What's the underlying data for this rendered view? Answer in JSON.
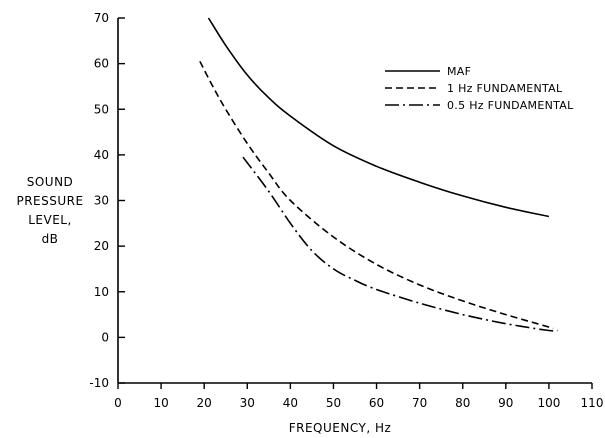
{
  "chart_data": {
    "type": "line",
    "title": "",
    "xlabel": "FREQUENCY, Hz",
    "ylabel": [
      "SOUND",
      "PRESSURE",
      "LEVEL,",
      "dB"
    ],
    "xlim": [
      0,
      110
    ],
    "ylim": [
      -10,
      70
    ],
    "xticks": [
      0,
      10,
      20,
      30,
      40,
      50,
      60,
      70,
      80,
      90,
      100,
      110
    ],
    "yticks": [
      -10,
      0,
      10,
      20,
      30,
      40,
      50,
      60,
      70
    ],
    "grid": false,
    "legend_position": "top-right",
    "series": [
      {
        "name": "MAF",
        "dash": "solid",
        "x": [
          21,
          25,
          30,
          35,
          40,
          50,
          60,
          70,
          80,
          90,
          100
        ],
        "y": [
          70,
          64,
          57.5,
          52.5,
          48.5,
          42,
          37.5,
          34,
          31,
          28.5,
          26.5
        ]
      },
      {
        "name": "1 Hz FUNDAMENTAL",
        "dash": "dashed",
        "x": [
          19,
          22,
          25,
          30,
          35,
          40,
          50,
          60,
          70,
          80,
          90,
          101
        ],
        "y": [
          60.5,
          55,
          50,
          42.5,
          36,
          30,
          22,
          16,
          11.5,
          8,
          5,
          2
        ]
      },
      {
        "name": "0.5 Hz FUNDAMENTAL",
        "dash": "dash-dot",
        "x": [
          29,
          35,
          40,
          45,
          50,
          55,
          60,
          70,
          80,
          90,
          100,
          102
        ],
        "y": [
          39.5,
          32,
          25,
          19,
          15,
          12.5,
          10.5,
          7.5,
          5,
          3,
          1.5,
          1.5
        ]
      }
    ]
  }
}
